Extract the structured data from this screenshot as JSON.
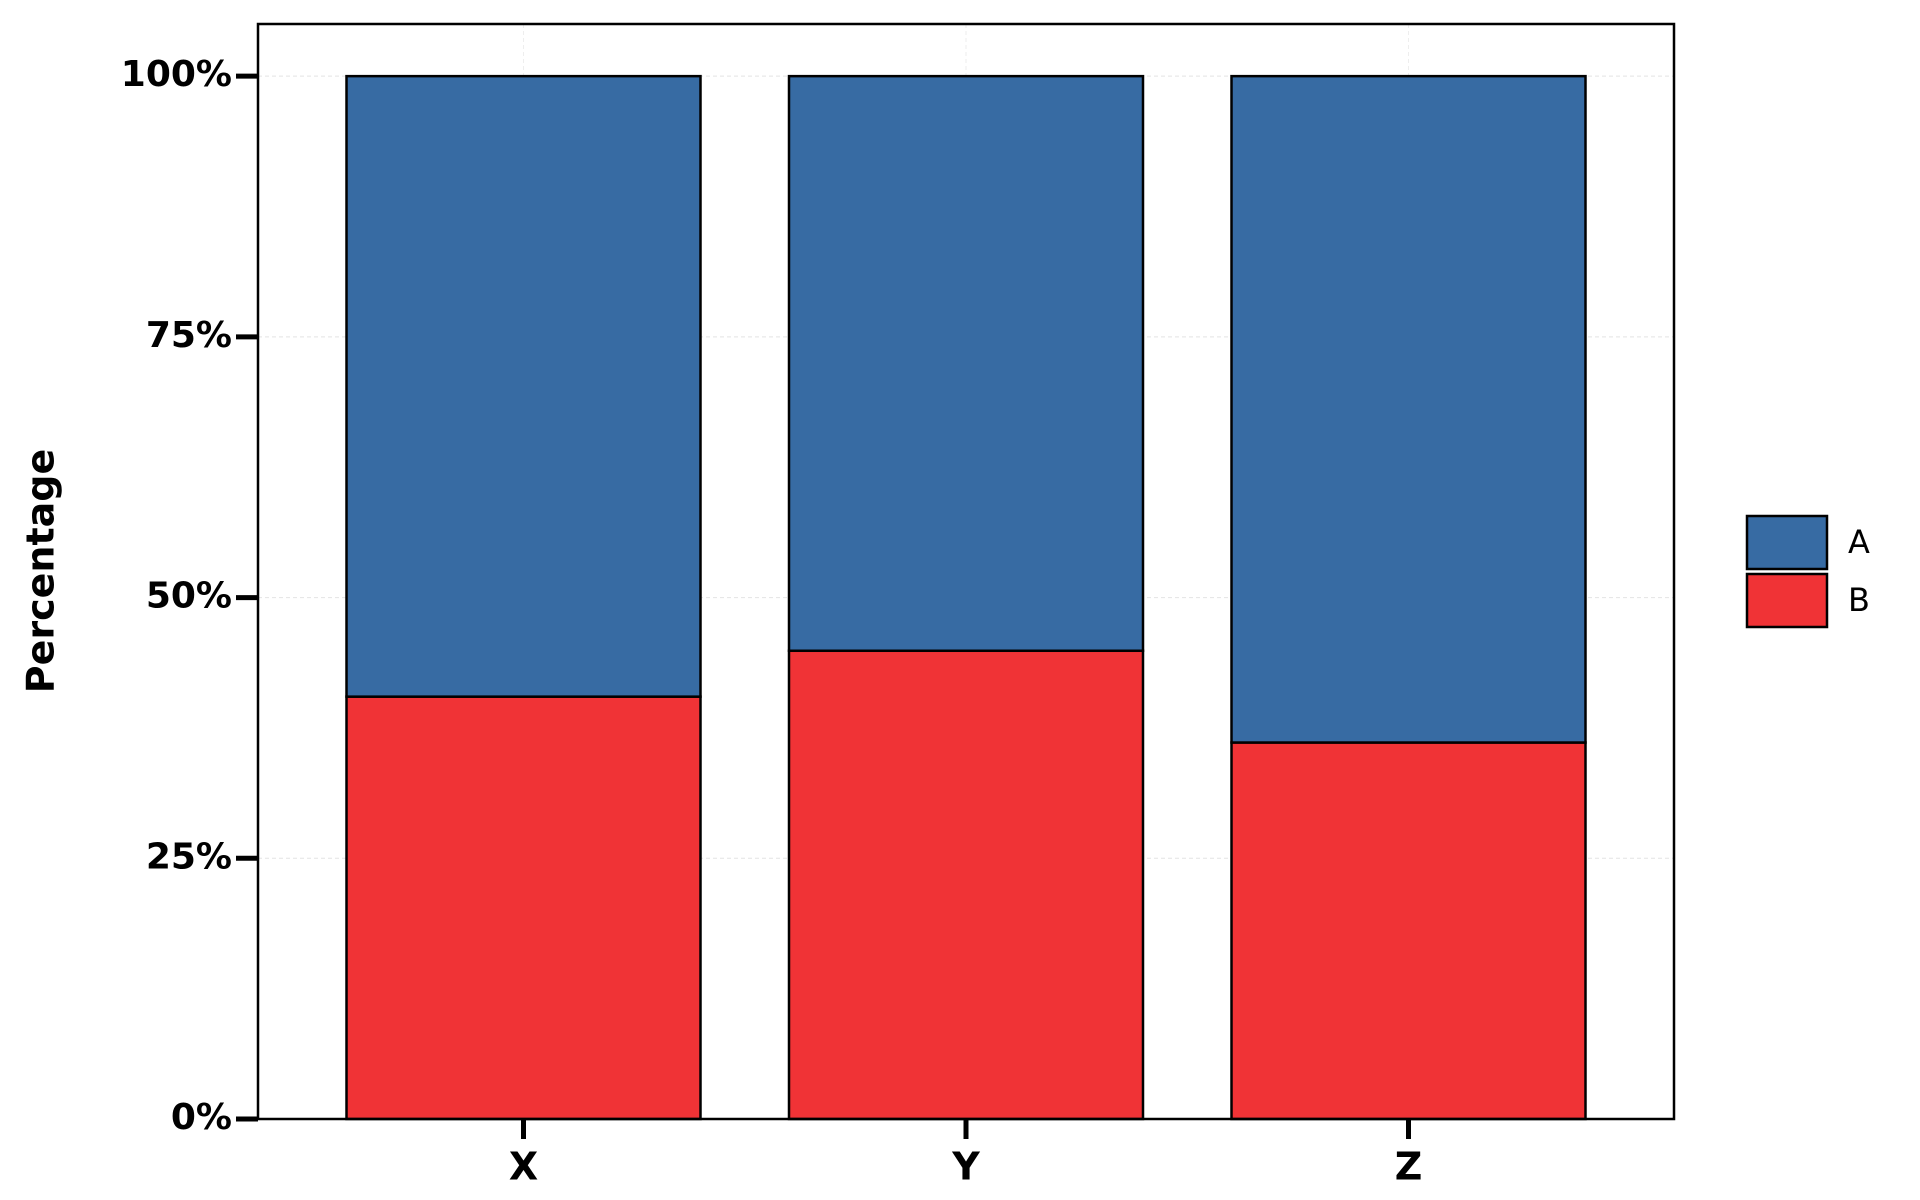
{
  "chart_data": {
    "type": "stacked_percent_bar",
    "y_label": "Percentage",
    "categories": [
      "X",
      "Y",
      "Z"
    ],
    "series": [
      {
        "name": "A",
        "color": "#376ba3",
        "values": [
          59.5,
          55.1,
          63.9
        ]
      },
      {
        "name": "B",
        "color": "#f03336",
        "values": [
          40.5,
          44.9,
          36.1
        ]
      }
    ],
    "ylim": [
      0,
      105
    ],
    "yticks": [
      {
        "value": 0,
        "label": "0%"
      },
      {
        "value": 25,
        "label": "25%"
      },
      {
        "value": 50,
        "label": "50%"
      },
      {
        "value": 75,
        "label": "75%"
      },
      {
        "value": 100,
        "label": "100%"
      }
    ],
    "grid": true,
    "legend": "right"
  }
}
